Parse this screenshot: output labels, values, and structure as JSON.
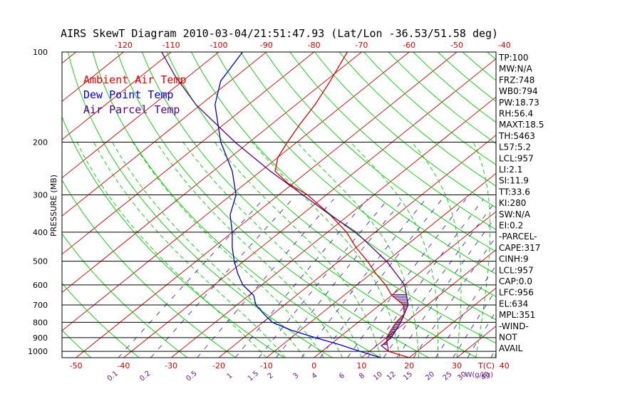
{
  "chart_data": {
    "type": "line",
    "title": "AIRS SkewT Diagram 2010-03-04/21:51:47.93 (Lat/Lon -36.53/51.58 deg)",
    "ylabel": "PRESSURE (MB)",
    "top_axis_label": "",
    "bottom_axis_label": "T(C)",
    "mixing_ratio_label": "W(g/kg)",
    "pressure_levels": [
      100,
      200,
      300,
      400,
      500,
      600,
      700,
      800,
      900,
      1000
    ],
    "pressure_ticks": [
      "100",
      "200",
      "300",
      "400",
      "500",
      "600",
      "700",
      "800",
      "900",
      "1000"
    ],
    "top_temp_ticks": [
      -120,
      -110,
      -100,
      -90,
      -80,
      -70,
      -60,
      -50,
      -40
    ],
    "top_temp_tick_labels": [
      "-120",
      "-110",
      "-100",
      "-90",
      "-80",
      "-70",
      "-60",
      "-50",
      "-40"
    ],
    "bottom_temp_ticks": [
      -50,
      -40,
      -30,
      -20,
      -10,
      0,
      10,
      20,
      30,
      40
    ],
    "bottom_temp_tick_labels": [
      "-50",
      "-40",
      "-30",
      "-20",
      "-10",
      "0",
      "10",
      "20",
      "30",
      "40"
    ],
    "mixing_ratio_ticks": [
      "0.1",
      "0.2",
      "0.5",
      "1",
      "1.5",
      "2",
      "3",
      "4",
      "6",
      "8",
      "10",
      "12",
      "15",
      "20",
      "25",
      "30",
      "40"
    ],
    "series": [
      {
        "name": "Ambient Air Temp",
        "color": "#dd0000",
        "points": [
          [
            1050,
            20
          ],
          [
            1000,
            14
          ],
          [
            950,
            12
          ],
          [
            900,
            10
          ],
          [
            850,
            9
          ],
          [
            800,
            8
          ],
          [
            750,
            7.5
          ],
          [
            700,
            5
          ],
          [
            650,
            0
          ],
          [
            600,
            -4
          ],
          [
            550,
            -9
          ],
          [
            500,
            -14
          ],
          [
            450,
            -20
          ],
          [
            400,
            -26
          ],
          [
            350,
            -34
          ],
          [
            300,
            -44
          ],
          [
            275,
            -51
          ],
          [
            250,
            -57
          ],
          [
            225,
            -60
          ],
          [
            200,
            -62
          ],
          [
            175,
            -64
          ],
          [
            150,
            -66
          ],
          [
            125,
            -69
          ],
          [
            100,
            -73
          ]
        ]
      },
      {
        "name": "Dew Point Temp",
        "color": "#0000cc",
        "points": [
          [
            1050,
            14
          ],
          [
            1000,
            8
          ],
          [
            950,
            2
          ],
          [
            900,
            -5
          ],
          [
            850,
            -12
          ],
          [
            800,
            -18
          ],
          [
            750,
            -22
          ],
          [
            700,
            -26
          ],
          [
            650,
            -29
          ],
          [
            600,
            -34
          ],
          [
            550,
            -38
          ],
          [
            500,
            -42
          ],
          [
            450,
            -46
          ],
          [
            400,
            -50
          ],
          [
            350,
            -55
          ],
          [
            300,
            -59
          ],
          [
            250,
            -66
          ],
          [
            200,
            -76
          ],
          [
            150,
            -87
          ],
          [
            125,
            -92
          ],
          [
            100,
            -95
          ]
        ]
      },
      {
        "name": "Air Parcel Temp",
        "color": "#550088",
        "points": [
          [
            1000,
            14
          ],
          [
            957,
            11
          ],
          [
            900,
            11
          ],
          [
            800,
            9
          ],
          [
            700,
            6
          ],
          [
            600,
            0
          ],
          [
            500,
            -10
          ],
          [
            400,
            -24
          ],
          [
            350,
            -34
          ],
          [
            300,
            -45
          ],
          [
            250,
            -58
          ],
          [
            200,
            -73
          ],
          [
            150,
            -91
          ],
          [
            120,
            -103
          ],
          [
            100,
            -112
          ]
        ]
      }
    ],
    "stats": [
      "TP:100",
      "MW:N/A",
      "FRZ:748",
      "WB0:794",
      "PW:18.73",
      "RH:56.4",
      "MAXT:18.5",
      "TH:5463",
      "L57:5.2",
      "LCL:957",
      "LI:2.1",
      "SI:11.9",
      "TT:33.6",
      "KI:280",
      "SW:N/A",
      "EI:0.2",
      "-PARCEL-",
      "CAPE:317",
      "CINH:9",
      "LCL:957",
      "CAP:0.0",
      "LFC:956",
      "EL:634",
      "MPL:351",
      "-WIND-",
      "NOT",
      "AVAIL"
    ],
    "legend": [
      "Ambient Air Temp",
      "Dew Point Temp",
      "Air Parcel Temp"
    ],
    "colors": {
      "isotherm": "#d00000",
      "dry_adiabat": "#00cc00",
      "moist_adiabat": "#00cc00",
      "mixing_ratio": "#3a2ab0",
      "isobar": "#000000",
      "cape_hatch": "#330066"
    }
  }
}
